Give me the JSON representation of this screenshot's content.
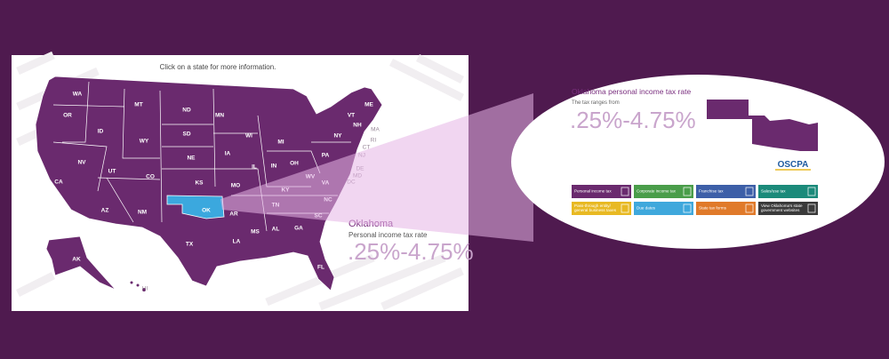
{
  "prompt": "Click on a state for more information.",
  "map": {
    "state_labels": [
      "WA",
      "OR",
      "ID",
      "MT",
      "ND",
      "SD",
      "WY",
      "NE",
      "NV",
      "UT",
      "CO",
      "CA",
      "AZ",
      "NM",
      "KS",
      "OK",
      "TX",
      "MN",
      "IA",
      "MO",
      "AR",
      "LA",
      "WI",
      "IL",
      "MI",
      "IN",
      "OH",
      "KY",
      "TN",
      "MS",
      "AL",
      "GA",
      "FL",
      "SC",
      "NC",
      "VA",
      "WV",
      "PA",
      "NY",
      "VT",
      "NH",
      "ME",
      "MA",
      "RI",
      "CT",
      "NJ",
      "DE",
      "MD",
      "DC",
      "AK",
      "HI"
    ],
    "selected": {
      "name": "Oklahoma",
      "subtitle": "Personal income tax rate",
      "rate": ".25%-4.75%"
    }
  },
  "detail": {
    "title": "Oklahoma personal income tax rate",
    "ranges_label": "The tax ranges from",
    "rate": ".25%-4.75%",
    "logo": "OSCPA",
    "buttons": [
      [
        "Personal income tax"
      ],
      [
        "Corporate income tax"
      ],
      [
        "Franchise tax"
      ],
      [
        "Sales/use tax"
      ],
      [
        "Pass-through entity/",
        "general business taxes"
      ],
      [
        "Due dates"
      ],
      [
        "State tax forms"
      ],
      [
        "View Oklahoma's state",
        "government websites"
      ]
    ]
  }
}
